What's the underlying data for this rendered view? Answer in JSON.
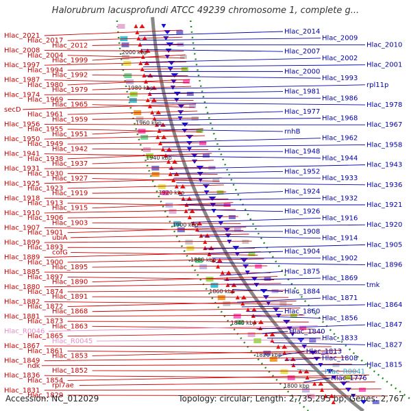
{
  "title": "Halorubrum lacusprofundi ATCC 49239 chromosome 1, complete g...",
  "footer": {
    "accession": "Accession: NC_012029",
    "summary": "Topology: circular; Length: 2,735,295 bp; Genes: 2,767"
  },
  "colors": {
    "forward_strand": "#ee1111",
    "reverse_strand": "#1111ee",
    "left_label": "#cc0000",
    "right_label": "#0000aa",
    "rna_label": "#e88fc8",
    "trna_right_label": "#22aacc",
    "backbone": "#888888",
    "scale_dots": "#228b22"
  },
  "scale_ticks": [
    "2000 kbp",
    "1980 kbp",
    "1960 kbp",
    "1940 kbp",
    "1920 kbp",
    "1900 kbp",
    "1880 kbp",
    "1860 kbp",
    "1840 kbp",
    "1820 kbp",
    "1800 kbp"
  ],
  "left_labels": [
    "Hlac_2021",
    "Hlac_2017",
    "Hlac_2012",
    "Hlac_2008",
    "Hlac_2004",
    "Hlac_1999",
    "Hlac_1997",
    "Hlac_1994",
    "Hlac_1992",
    "Hlac_1987",
    "Hlac_1980",
    "Hlac_1979",
    "Hlac_1974",
    "Hlac_1969",
    "Hlac_1965",
    "secD",
    "Hlac_1961",
    "Hlac_1959",
    "Hlac_1956",
    "Hlac_1955",
    "Hlac_1951",
    "Hlac_1950",
    "Hlac_1949",
    "Hlac_1942",
    "Hlac_1941",
    "Hlac_1938",
    "Hlac_1937",
    "Hlac_1931",
    "Hlac_1930",
    "Hlac_1927",
    "Hlac_1925",
    "Hlac_1923",
    "Hlac_1919",
    "Hlac_1918",
    "Hlac_1913",
    "Hlac_1915",
    "Hlac_1910",
    "Hlac_1906",
    "Hlac_1903",
    "Hlac_1907",
    "Hlac_1901",
    "ubiA",
    "Hlac_1899",
    "Hlac_1893",
    "cofG",
    "Hlac_1889",
    "Hlac_1900",
    "Hlac_1895",
    "Hlac_1885",
    "Hlac_1897",
    "Hlac_1890",
    "Hlac_1880",
    "Hlac_1874",
    "Hlac_1891",
    "Hlac_1882",
    "Hlac_1872",
    "Hlac_1868",
    "Hlac_1881",
    "Hlac_1873",
    "Hlac_1863",
    "Hlac_R0046",
    "Hlac_1865",
    "Hlac_R0045",
    "Hlac_1867",
    "Hlac_1861",
    "Hlac_1853",
    "Hlac_1849",
    "ndk",
    "Hlac_1852",
    "Hlac_1836",
    "Hlac_1854",
    "rpl7ae",
    "Hlac_1831",
    "Hlac_1829"
  ],
  "right_labels": [
    "Hlac_2014",
    "Hlac_2009",
    "Hlac_2010",
    "Hlac_2007",
    "Hlac_2002",
    "Hlac_2001",
    "Hlac_2000",
    "Hlac_1993",
    "rpl11p",
    "Hlac_1981",
    "Hlac_1986",
    "Hlac_1978",
    "Hlac_1977",
    "Hlac_1968",
    "Hlac_1967",
    "rnhB",
    "Hlac_1962",
    "Hlac_1958",
    "Hlac_1948",
    "Hlac_1944",
    "Hlac_1943",
    "Hlac_1952",
    "Hlac_1933",
    "Hlac_1936",
    "Hlac_1924",
    "Hlac_1932",
    "Hlac_1921",
    "Hlac_1926",
    "Hlac_1916",
    "Hlac_1920",
    "Hlac_1908",
    "Hlac_1914",
    "Hlac_1905",
    "Hlac_1904",
    "Hlac_1902",
    "Hlac_1896",
    "Hlac_1875",
    "Hlac_1869",
    "tmk",
    "Hlac_1884",
    "Hlac_1871",
    "Hlac_1864",
    "Hlac_1860",
    "Hlac_1856",
    "Hlac_1847",
    "Hlac_1840",
    "Hlac_1833",
    "Hlac_1827",
    "Hlac_1813",
    "Hlac_1808",
    "Hlac_1815",
    "Hlac_R0041",
    "Hlac_1776"
  ]
}
